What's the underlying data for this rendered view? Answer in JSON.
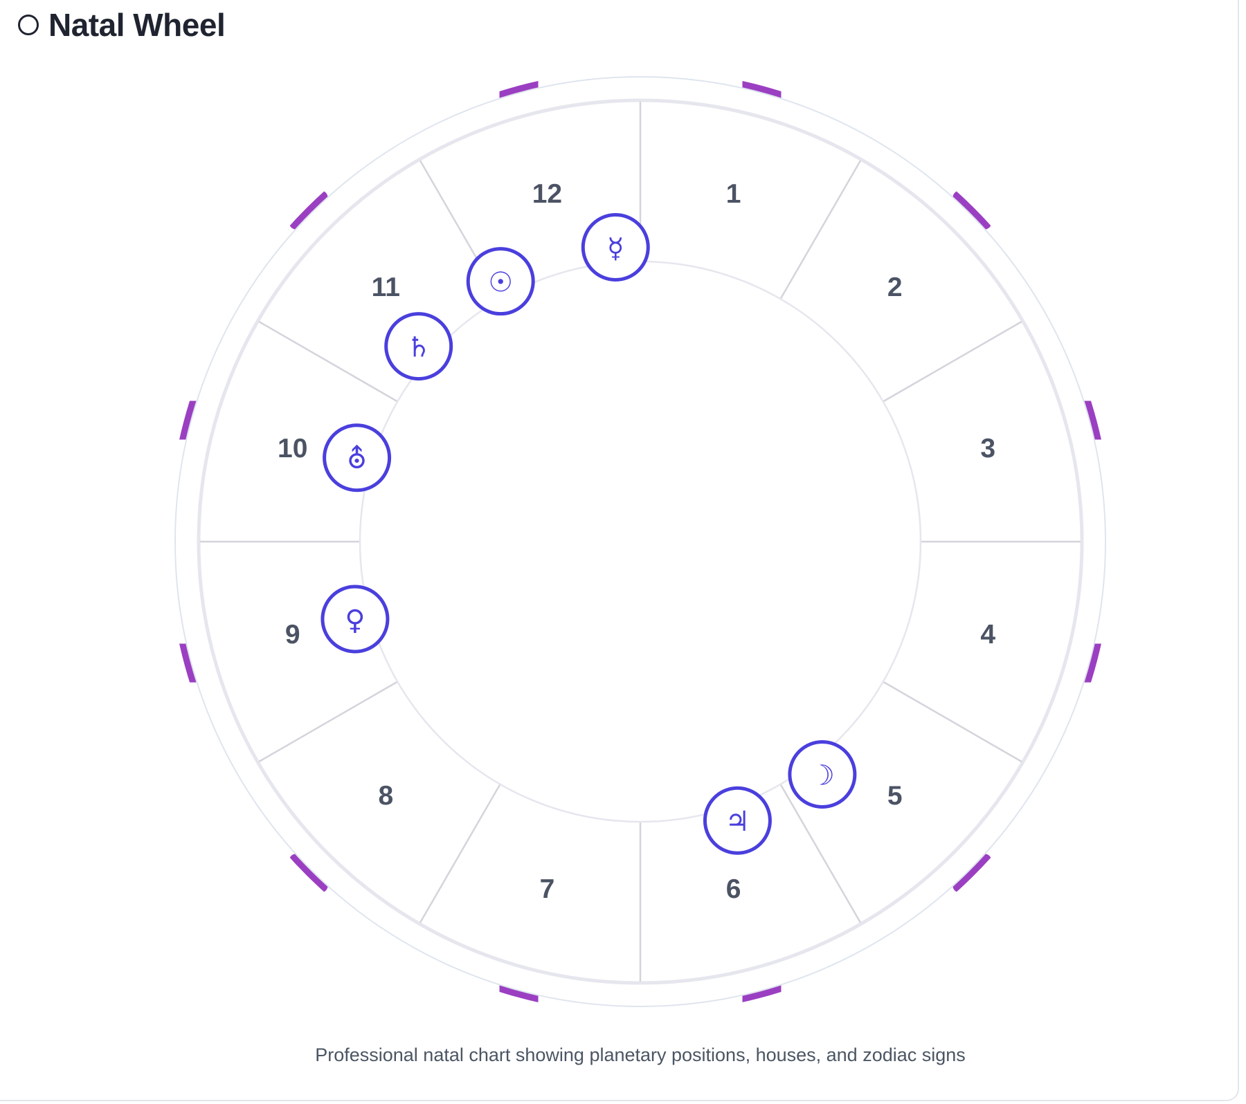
{
  "header": {
    "title": "Natal Wheel",
    "icon": "circle-outline-icon"
  },
  "caption": "Professional natal chart showing planetary positions, houses, and zodiac signs",
  "colors": {
    "accent": "#4a3fdd",
    "house_text": "#4b5364",
    "ring": "#e6e6ee",
    "zodiac_badge": "#9b3fc2"
  },
  "houses": [
    {
      "number": "1"
    },
    {
      "number": "2"
    },
    {
      "number": "3"
    },
    {
      "number": "4"
    },
    {
      "number": "5"
    },
    {
      "number": "6"
    },
    {
      "number": "7"
    },
    {
      "number": "8"
    },
    {
      "number": "9"
    },
    {
      "number": "10"
    },
    {
      "number": "11"
    },
    {
      "number": "12"
    }
  ],
  "planets": [
    {
      "name": "mercury",
      "glyph": "☿",
      "angle_deg": 94.8
    },
    {
      "name": "sun",
      "glyph": "☉",
      "angle_deg": 118.2
    },
    {
      "name": "saturn",
      "glyph": "♄",
      "angle_deg": 138.6
    },
    {
      "name": "uranus",
      "glyph": "⛢",
      "angle_deg": 163.5
    },
    {
      "name": "venus",
      "glyph": "♀",
      "angle_deg": 195.2
    },
    {
      "name": "jupiter",
      "glyph": "♃",
      "angle_deg": 289.2
    },
    {
      "name": "moon",
      "glyph": "☽",
      "angle_deg": 308.0
    }
  ],
  "zodiac_badges": [
    {
      "name": "zodiac-badge-1"
    },
    {
      "name": "zodiac-badge-2"
    },
    {
      "name": "zodiac-badge-3"
    },
    {
      "name": "zodiac-badge-4"
    },
    {
      "name": "zodiac-badge-5"
    },
    {
      "name": "zodiac-badge-6"
    },
    {
      "name": "zodiac-badge-7"
    },
    {
      "name": "zodiac-badge-8"
    },
    {
      "name": "zodiac-badge-9"
    },
    {
      "name": "zodiac-badge-10"
    },
    {
      "name": "zodiac-badge-11"
    },
    {
      "name": "zodiac-badge-12"
    }
  ]
}
